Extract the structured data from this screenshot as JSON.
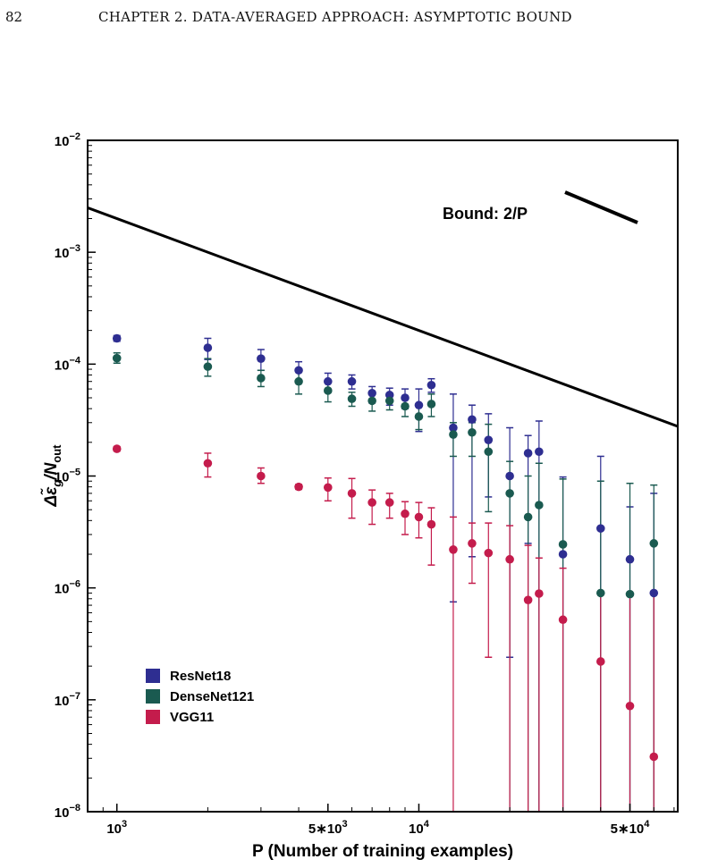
{
  "header": {
    "page_number": "82",
    "running_head": "CHAPTER 2.  DATA-AVERAGED APPROACH: ASYMPTOTIC BOUND"
  },
  "chart_data": {
    "type": "scatter",
    "xlabel": "P (Number of training examples)",
    "ylabel_main": "Δε̃",
    "ylabel_sub_g": "g",
    "ylabel_slash": "/N",
    "ylabel_sub_out": "out",
    "xscale": "log",
    "yscale": "log",
    "xlim": [
      800,
      72000
    ],
    "ylim": [
      1e-08,
      0.01
    ],
    "x_ticks": [
      {
        "value": 1000,
        "base": "10",
        "exp": "3",
        "coef": ""
      },
      {
        "value": 5000,
        "base": "10",
        "exp": "3",
        "coef": "5∗"
      },
      {
        "value": 10000,
        "base": "10",
        "exp": "4",
        "coef": ""
      },
      {
        "value": 50000,
        "base": "10",
        "exp": "4",
        "coef": "5∗"
      }
    ],
    "y_ticks": [
      {
        "value": 1e-08,
        "base": "10",
        "exp": "−8"
      },
      {
        "value": 1e-07,
        "base": "10",
        "exp": "−7"
      },
      {
        "value": 1e-06,
        "base": "10",
        "exp": "−6"
      },
      {
        "value": 1e-05,
        "base": "10",
        "exp": "−5"
      },
      {
        "value": 0.0001,
        "base": "10",
        "exp": "−4"
      },
      {
        "value": 0.001,
        "base": "10",
        "exp": "−3"
      },
      {
        "value": 0.01,
        "base": "10",
        "exp": "−2"
      }
    ],
    "bound": {
      "label": "Bound: 2/P",
      "coefficient": 2,
      "color": "#000000"
    },
    "legend_position": "bottom-left",
    "series": [
      {
        "name": "ResNet18",
        "color": "#2e2e91",
        "points": [
          {
            "x": 1000,
            "y": 0.00017,
            "lo": 0.00016,
            "hi": 0.00018
          },
          {
            "x": 2000,
            "y": 0.00014,
            "lo": 0.00011,
            "hi": 0.00017
          },
          {
            "x": 3000,
            "y": 0.000112,
            "lo": 8.8e-05,
            "hi": 0.000135
          },
          {
            "x": 4000,
            "y": 8.8e-05,
            "lo": 7e-05,
            "hi": 0.000105
          },
          {
            "x": 5000,
            "y": 7e-05,
            "lo": 5.6e-05,
            "hi": 8.3e-05
          },
          {
            "x": 6000,
            "y": 7e-05,
            "lo": 6e-05,
            "hi": 8e-05
          },
          {
            "x": 7000,
            "y": 5.5e-05,
            "lo": 4.5e-05,
            "hi": 6.3e-05
          },
          {
            "x": 8000,
            "y": 5.3e-05,
            "lo": 4.3e-05,
            "hi": 6.1e-05
          },
          {
            "x": 9000,
            "y": 5e-05,
            "lo": 4e-05,
            "hi": 6e-05
          },
          {
            "x": 10000,
            "y": 4.3e-05,
            "lo": 2.5e-05,
            "hi": 6e-05
          },
          {
            "x": 11000,
            "y": 6.5e-05,
            "lo": 5.6e-05,
            "hi": 7.4e-05
          },
          {
            "x": 13000,
            "y": 2.7e-05,
            "lo": 7.5e-07,
            "hi": 5.4e-05
          },
          {
            "x": 15000,
            "y": 3.2e-05,
            "lo": 1.9e-06,
            "hi": 4.3e-05
          },
          {
            "x": 17000,
            "y": 2.1e-05,
            "lo": 6.5e-06,
            "hi": 3.6e-05
          },
          {
            "x": 20000,
            "y": 1e-05,
            "lo": 2.4e-07,
            "hi": 2.7e-05
          },
          {
            "x": 23000,
            "y": 1.6e-05,
            "lo": 2.5e-06,
            "hi": 2.3e-05
          },
          {
            "x": 25000,
            "y": 1.65e-05,
            "lo": 1e-08,
            "hi": 3.1e-05
          },
          {
            "x": 30000,
            "y": 2e-06,
            "lo": 1e-08,
            "hi": 9.8e-06
          },
          {
            "x": 40000,
            "y": 3.4e-06,
            "lo": 1e-08,
            "hi": 1.5e-05
          },
          {
            "x": 50000,
            "y": 1.8e-06,
            "lo": 1e-08,
            "hi": 5.3e-06
          },
          {
            "x": 60000,
            "y": 9e-07,
            "lo": 1e-08,
            "hi": 7e-06
          }
        ]
      },
      {
        "name": "DenseNet121",
        "color": "#1a5a50",
        "points": [
          {
            "x": 1000,
            "y": 0.000113,
            "lo": 0.000102,
            "hi": 0.000126
          },
          {
            "x": 2000,
            "y": 9.5e-05,
            "lo": 7.8e-05,
            "hi": 0.000112
          },
          {
            "x": 3000,
            "y": 7.5e-05,
            "lo": 6.3e-05,
            "hi": 8.8e-05
          },
          {
            "x": 4000,
            "y": 7e-05,
            "lo": 5.4e-05,
            "hi": 8.5e-05
          },
          {
            "x": 5000,
            "y": 5.8e-05,
            "lo": 4.6e-05,
            "hi": 7e-05
          },
          {
            "x": 6000,
            "y": 4.9e-05,
            "lo": 4.2e-05,
            "hi": 5.6e-05
          },
          {
            "x": 7000,
            "y": 4.7e-05,
            "lo": 3.8e-05,
            "hi": 5.6e-05
          },
          {
            "x": 8000,
            "y": 4.7e-05,
            "lo": 3.9e-05,
            "hi": 5.5e-05
          },
          {
            "x": 9000,
            "y": 4.2e-05,
            "lo": 3.4e-05,
            "hi": 5e-05
          },
          {
            "x": 10000,
            "y": 3.4e-05,
            "lo": 2.6e-05,
            "hi": 4.2e-05
          },
          {
            "x": 11000,
            "y": 4.4e-05,
            "lo": 3.4e-05,
            "hi": 5.4e-05
          },
          {
            "x": 13000,
            "y": 2.35e-05,
            "lo": 1.5e-05,
            "hi": 3e-05
          },
          {
            "x": 15000,
            "y": 2.45e-05,
            "lo": 1.5e-05,
            "hi": 3e-05
          },
          {
            "x": 17000,
            "y": 1.65e-05,
            "lo": 4.8e-06,
            "hi": 2.9e-05
          },
          {
            "x": 20000,
            "y": 7e-06,
            "lo": 1e-08,
            "hi": 1.35e-05
          },
          {
            "x": 23000,
            "y": 4.3e-06,
            "lo": 1e-08,
            "hi": 1e-05
          },
          {
            "x": 25000,
            "y": 5.5e-06,
            "lo": 1e-08,
            "hi": 1.3e-05
          },
          {
            "x": 30000,
            "y": 2.45e-06,
            "lo": 1e-08,
            "hi": 9.4e-06
          },
          {
            "x": 40000,
            "y": 9e-07,
            "lo": 1e-08,
            "hi": 9e-06
          },
          {
            "x": 50000,
            "y": 8.8e-07,
            "lo": 1e-08,
            "hi": 8.6e-06
          },
          {
            "x": 60000,
            "y": 2.5e-06,
            "lo": 1e-08,
            "hi": 8.3e-06
          }
        ]
      },
      {
        "name": "VGG11",
        "color": "#c41c4c",
        "points": [
          {
            "x": 1000,
            "y": 1.75e-05,
            "lo": 1.67e-05,
            "hi": 1.83e-05
          },
          {
            "x": 2000,
            "y": 1.3e-05,
            "lo": 9.8e-06,
            "hi": 1.6e-05
          },
          {
            "x": 3000,
            "y": 1e-05,
            "lo": 8.6e-06,
            "hi": 1.18e-05
          },
          {
            "x": 4000,
            "y": 8e-06,
            "lo": 7.6e-06,
            "hi": 8.4e-06
          },
          {
            "x": 5000,
            "y": 7.9e-06,
            "lo": 6e-06,
            "hi": 9.6e-06
          },
          {
            "x": 6000,
            "y": 7e-06,
            "lo": 4.2e-06,
            "hi": 9.5e-06
          },
          {
            "x": 7000,
            "y": 5.8e-06,
            "lo": 3.7e-06,
            "hi": 7.5e-06
          },
          {
            "x": 8000,
            "y": 5.8e-06,
            "lo": 4.2e-06,
            "hi": 7e-06
          },
          {
            "x": 9000,
            "y": 4.6e-06,
            "lo": 3e-06,
            "hi": 5.9e-06
          },
          {
            "x": 10000,
            "y": 4.3e-06,
            "lo": 2.8e-06,
            "hi": 5.8e-06
          },
          {
            "x": 11000,
            "y": 3.7e-06,
            "lo": 1.6e-06,
            "hi": 5.2e-06
          },
          {
            "x": 13000,
            "y": 2.2e-06,
            "lo": 1e-08,
            "hi": 4.3e-06
          },
          {
            "x": 15000,
            "y": 2.5e-06,
            "lo": 1.1e-06,
            "hi": 3.8e-06
          },
          {
            "x": 17000,
            "y": 2.05e-06,
            "lo": 2.4e-07,
            "hi": 3.8e-06
          },
          {
            "x": 20000,
            "y": 1.8e-06,
            "lo": 1e-08,
            "hi": 3.6e-06
          },
          {
            "x": 23000,
            "y": 7.8e-07,
            "lo": 1e-08,
            "hi": 2.4e-06
          },
          {
            "x": 25000,
            "y": 8.9e-07,
            "lo": 1e-08,
            "hi": 1.85e-06
          },
          {
            "x": 30000,
            "y": 5.2e-07,
            "lo": 1e-08,
            "hi": 1.5e-06
          },
          {
            "x": 40000,
            "y": 2.2e-07,
            "lo": 1e-08,
            "hi": 9e-07
          },
          {
            "x": 50000,
            "y": 8.8e-08,
            "lo": 1e-08,
            "hi": 8.8e-07
          },
          {
            "x": 60000,
            "y": 3.1e-08,
            "lo": 1e-08,
            "hi": 8.8e-07
          }
        ]
      }
    ]
  }
}
